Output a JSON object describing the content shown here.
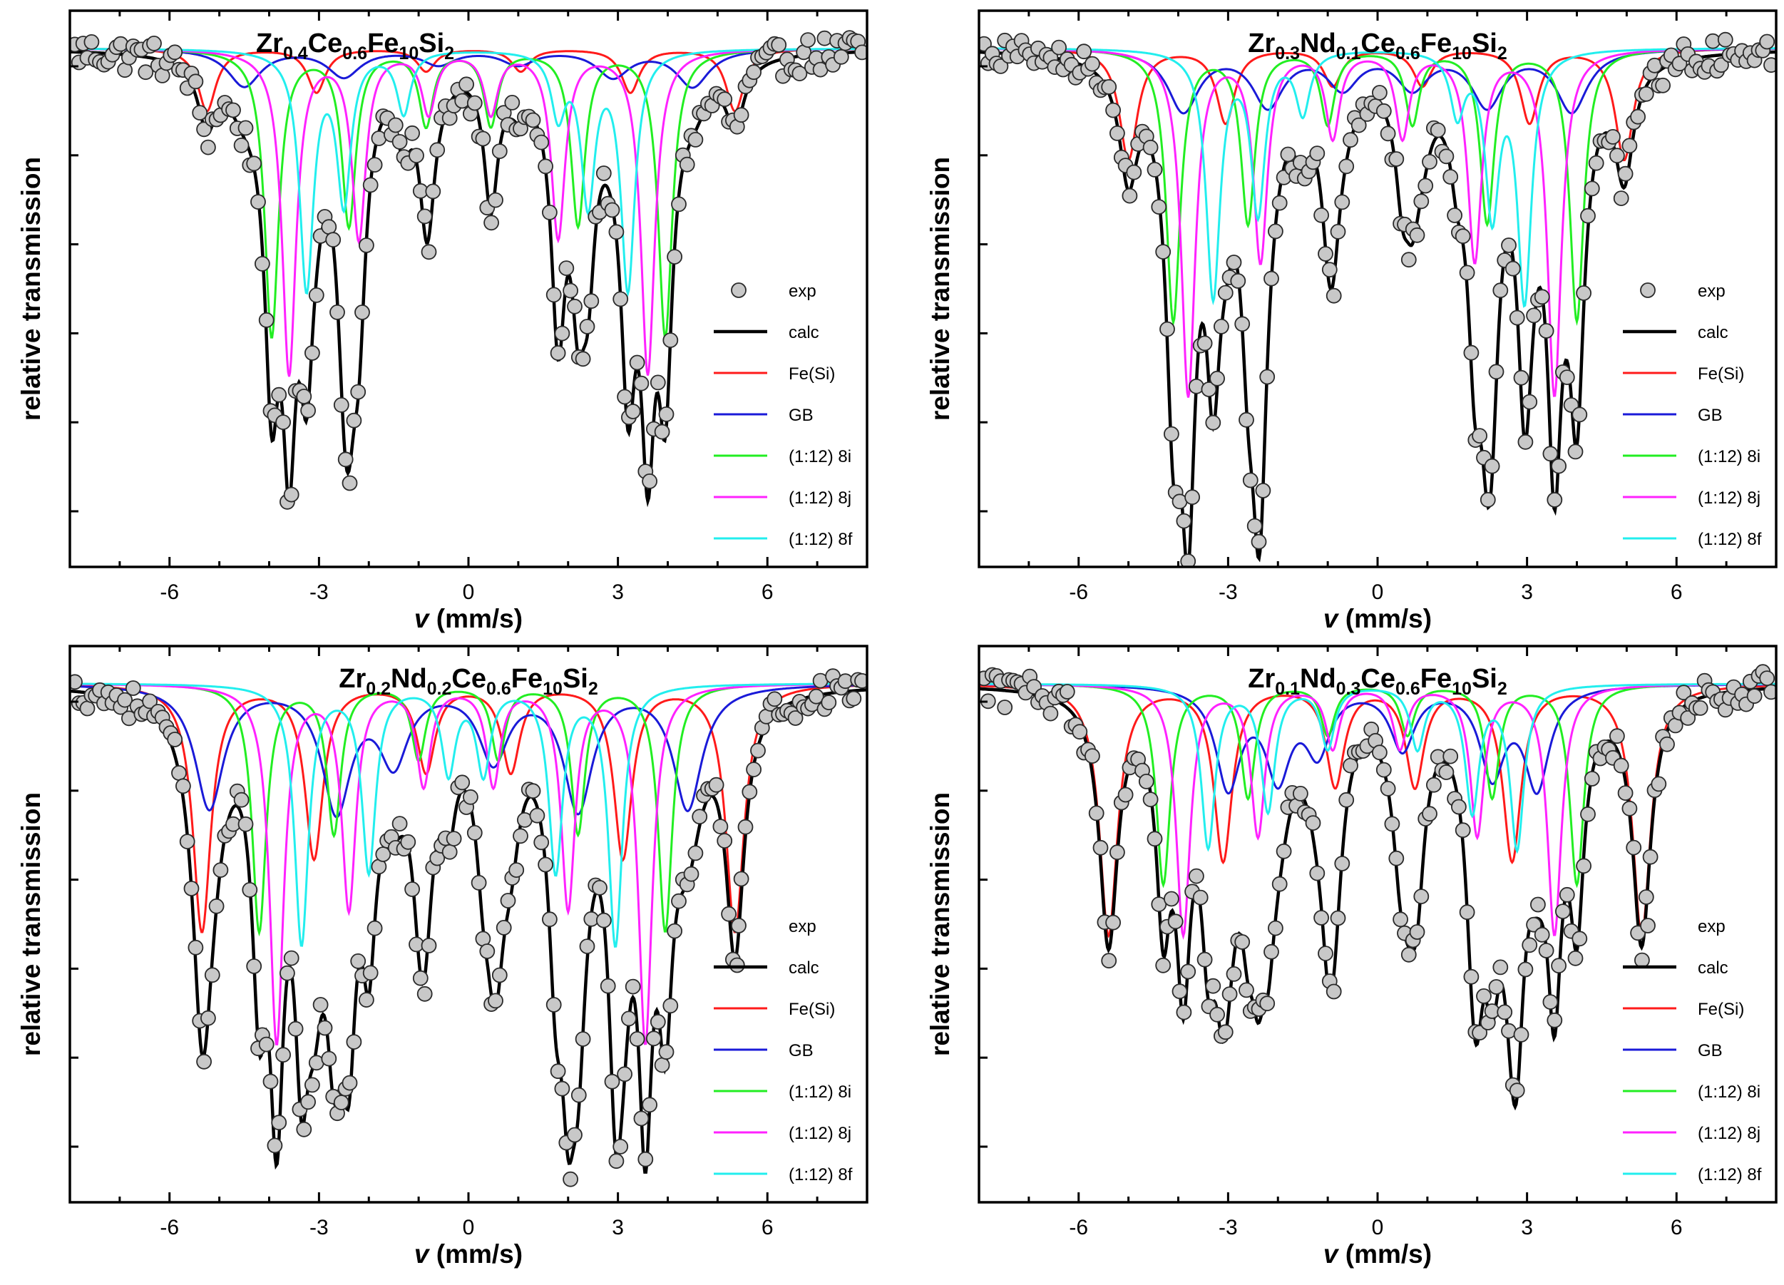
{
  "colors": {
    "exp_fill": "#c8c8c8",
    "exp_edge": "#2a2a2a",
    "calc": "#000000",
    "fe_si": "#ff1a1a",
    "gb": "#1a1ad8",
    "s8i": "#22ee22",
    "s8j": "#ff22ff",
    "s8f": "#22eeee"
  },
  "chart_data": [
    {
      "type": "line",
      "panel": "top-left",
      "title_parts": [
        [
          "Zr",
          false
        ],
        [
          "0.4",
          true
        ],
        [
          "Ce",
          false
        ],
        [
          "0.6",
          true
        ],
        [
          "Fe",
          false
        ],
        [
          "10",
          true
        ],
        [
          "Si",
          false
        ],
        [
          "2",
          true
        ]
      ],
      "ylabel": "relative transmission",
      "xlabel_italic": "v",
      "xlabel_rest": " (mm/s)",
      "xlim": [
        -8,
        8
      ],
      "ylim": [
        0.585,
        1.03
      ],
      "xticks": [
        -6,
        -3,
        0,
        3,
        6
      ],
      "legend_position": "right",
      "legend": [
        "exp",
        "calc",
        "Fe(Si)",
        "GB",
        "(1:12) 8i",
        "(1:12) 8j",
        "(1:12) 8f"
      ],
      "series": [
        {
          "name": "Fe(Si)",
          "key": "fe_si",
          "centers": [
            -5.25,
            -3.05,
            -0.85,
            1.05,
            3.25,
            5.35
          ],
          "depths": [
            0.05,
            0.035,
            0.018,
            0.018,
            0.035,
            0.05
          ],
          "width": 0.22
        },
        {
          "name": "GB",
          "key": "gb",
          "centers": [
            -4.5,
            -2.5,
            -0.6,
            1.0,
            2.9,
            4.5
          ],
          "depths": [
            0.03,
            0.022,
            0.012,
            0.012,
            0.022,
            0.03
          ],
          "width": 0.4
        },
        {
          "name": "(1:12) 8i",
          "key": "s8i",
          "centers": [
            -3.95,
            -2.4,
            -0.85,
            0.45,
            2.2,
            3.95
          ],
          "depths": [
            0.23,
            0.14,
            0.06,
            0.06,
            0.14,
            0.23
          ],
          "width": 0.17
        },
        {
          "name": "(1:12) 8j",
          "key": "s8j",
          "centers": [
            -3.6,
            -2.2,
            -0.8,
            0.45,
            1.8,
            3.6
          ],
          "depths": [
            0.26,
            0.15,
            0.05,
            0.05,
            0.15,
            0.26
          ],
          "width": 0.17
        },
        {
          "name": "(1:12) 8f",
          "key": "s8f",
          "centers": [
            -3.25,
            -2.5,
            -1.3,
            1.8,
            2.4,
            3.2
          ],
          "depths": [
            0.19,
            0.12,
            0.05,
            0.05,
            0.12,
            0.19
          ],
          "width": 0.17
        }
      ]
    },
    {
      "type": "line",
      "panel": "top-right",
      "title_parts": [
        [
          "Zr",
          false
        ],
        [
          "0.3",
          true
        ],
        [
          "Nd",
          false
        ],
        [
          "0.1",
          true
        ],
        [
          "Ce",
          false
        ],
        [
          "0.6",
          true
        ],
        [
          "Fe",
          false
        ],
        [
          "10",
          true
        ],
        [
          "Si",
          false
        ],
        [
          "2",
          true
        ]
      ],
      "ylabel": "relative transmission",
      "xlabel_italic": "v",
      "xlabel_rest": " (mm/s)",
      "xlim": [
        -8,
        8
      ],
      "ylim": [
        0.58,
        1.03
      ],
      "xticks": [
        -6,
        -3,
        0,
        3,
        6
      ],
      "legend_position": "right",
      "legend": [
        "exp",
        "calc",
        "Fe(Si)",
        "GB",
        "(1:12) 8i",
        "(1:12) 8j",
        "(1:12) 8f"
      ],
      "series": [
        {
          "name": "Fe(Si)",
          "key": "fe_si",
          "centers": [
            -5.0,
            -3.05,
            -0.9,
            0.9,
            3.05,
            4.95
          ],
          "depths": [
            0.09,
            0.06,
            0.03,
            0.03,
            0.06,
            0.09
          ],
          "width": 0.22
        },
        {
          "name": "GB",
          "key": "gb",
          "centers": [
            -3.9,
            -2.2,
            -0.7,
            0.7,
            2.2,
            3.9
          ],
          "depths": [
            0.05,
            0.045,
            0.03,
            0.03,
            0.045,
            0.05
          ],
          "width": 0.38
        },
        {
          "name": "(1:12) 8i",
          "key": "s8i",
          "centers": [
            -4.1,
            -2.6,
            -1.0,
            0.7,
            2.2,
            4.0
          ],
          "depths": [
            0.22,
            0.14,
            0.06,
            0.06,
            0.14,
            0.22
          ],
          "width": 0.17
        },
        {
          "name": "(1:12) 8j",
          "key": "s8j",
          "centers": [
            -3.8,
            -2.35,
            -0.9,
            0.5,
            1.95,
            3.55
          ],
          "depths": [
            0.28,
            0.17,
            0.07,
            0.07,
            0.17,
            0.28
          ],
          "width": 0.17
        },
        {
          "name": "(1:12) 8f",
          "key": "s8f",
          "centers": [
            -3.3,
            -2.4,
            -1.5,
            1.6,
            2.3,
            2.95
          ],
          "depths": [
            0.2,
            0.13,
            0.05,
            0.05,
            0.13,
            0.2
          ],
          "width": 0.17
        }
      ]
    },
    {
      "type": "line",
      "panel": "bottom-left",
      "title_parts": [
        [
          "Zr",
          false
        ],
        [
          "0.2",
          true
        ],
        [
          "Nd",
          false
        ],
        [
          "0.2",
          true
        ],
        [
          "Ce",
          false
        ],
        [
          "0.6",
          true
        ],
        [
          "Fe",
          false
        ],
        [
          "10",
          true
        ],
        [
          "Si",
          false
        ],
        [
          "2",
          true
        ]
      ],
      "ylabel": "relative transmission",
      "xlabel_italic": "v",
      "xlabel_rest": " (mm/s)",
      "xlim": [
        -8,
        8
      ],
      "ylim": [
        0.58,
        1.03
      ],
      "xticks": [
        -6,
        -3,
        0,
        3,
        6
      ],
      "legend_position": "right",
      "legend": [
        "exp",
        "calc",
        "Fe(Si)",
        "GB",
        "(1:12) 8i",
        "(1:12) 8j",
        "(1:12) 8f"
      ],
      "series": [
        {
          "name": "Fe(Si)",
          "key": "fe_si",
          "centers": [
            -5.35,
            -3.1,
            -0.85,
            0.85,
            3.1,
            5.35
          ],
          "depths": [
            0.2,
            0.14,
            0.07,
            0.07,
            0.14,
            0.2
          ],
          "width": 0.22
        },
        {
          "name": "GB",
          "key": "gb",
          "centers": [
            -5.2,
            -2.65,
            -1.5,
            0.5,
            2.2,
            4.4
          ],
          "depths": [
            0.1,
            0.1,
            0.06,
            0.06,
            0.1,
            0.1
          ],
          "width": 0.35
        },
        {
          "name": "(1:12) 8i",
          "key": "s8i",
          "centers": [
            -4.2,
            -2.7,
            -1.0,
            0.6,
            2.2,
            3.95
          ],
          "depths": [
            0.2,
            0.12,
            0.06,
            0.06,
            0.12,
            0.2
          ],
          "width": 0.17
        },
        {
          "name": "(1:12) 8j",
          "key": "s8j",
          "centers": [
            -3.85,
            -2.4,
            -0.9,
            0.5,
            2.0,
            3.55
          ],
          "depths": [
            0.29,
            0.18,
            0.08,
            0.08,
            0.18,
            0.29
          ],
          "width": 0.17
        },
        {
          "name": "(1:12) 8f",
          "key": "s8f",
          "centers": [
            -3.35,
            -2.0,
            -0.4,
            0.3,
            1.75,
            2.95
          ],
          "depths": [
            0.21,
            0.15,
            0.07,
            0.07,
            0.15,
            0.21
          ],
          "width": 0.17
        }
      ]
    },
    {
      "type": "line",
      "panel": "bottom-right",
      "title_parts": [
        [
          "Zr",
          false
        ],
        [
          "0.1",
          true
        ],
        [
          "Nd",
          false
        ],
        [
          "0.3",
          true
        ],
        [
          "Ce",
          false
        ],
        [
          "0.6",
          true
        ],
        [
          "Fe",
          false
        ],
        [
          "10",
          true
        ],
        [
          "Si",
          false
        ],
        [
          "2",
          true
        ]
      ],
      "ylabel": "relative transmission",
      "xlabel_italic": "v",
      "xlabel_rest": " (mm/s)",
      "xlim": [
        -8,
        8
      ],
      "ylim": [
        0.585,
        1.03
      ],
      "xticks": [
        -6,
        -3,
        0,
        3,
        6
      ],
      "legend_position": "right",
      "legend": [
        "exp",
        "calc",
        "Fe(Si)",
        "GB",
        "(1:12) 8i",
        "(1:12) 8j",
        "(1:12) 8f"
      ],
      "series": [
        {
          "name": "Fe(Si)",
          "key": "fe_si",
          "centers": [
            -5.4,
            -3.1,
            -0.85,
            0.75,
            2.7,
            5.3
          ],
          "depths": [
            0.2,
            0.14,
            0.08,
            0.08,
            0.14,
            0.2
          ],
          "width": 0.22
        },
        {
          "name": "GB",
          "key": "gb",
          "centers": [
            -3.0,
            -2.0,
            -1.2,
            0.5,
            2.3,
            3.2
          ],
          "depths": [
            0.08,
            0.07,
            0.05,
            0.05,
            0.07,
            0.08
          ],
          "width": 0.3
        },
        {
          "name": "(1:12) 8i",
          "key": "s8i",
          "centers": [
            -4.3,
            -2.6,
            -1.0,
            0.6,
            2.3,
            4.0
          ],
          "depths": [
            0.16,
            0.09,
            0.04,
            0.04,
            0.09,
            0.16
          ],
          "width": 0.17
        },
        {
          "name": "(1:12) 8j",
          "key": "s8j",
          "centers": [
            -3.9,
            -2.4,
            -0.9,
            0.45,
            2.0,
            3.55
          ],
          "depths": [
            0.2,
            0.12,
            0.05,
            0.05,
            0.12,
            0.2
          ],
          "width": 0.17
        },
        {
          "name": "(1:12) 8f",
          "key": "s8f",
          "centers": [
            -3.4,
            -2.2,
            -1.0,
            0.8,
            1.9,
            2.8
          ],
          "depths": [
            0.13,
            0.1,
            0.05,
            0.05,
            0.1,
            0.13
          ],
          "width": 0.17
        }
      ]
    }
  ]
}
